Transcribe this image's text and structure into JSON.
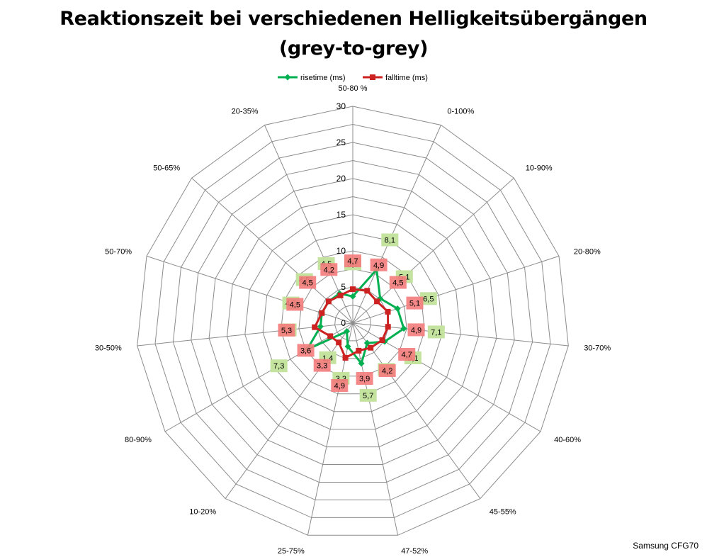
{
  "title": {
    "line1": "Reaktionszeit bei verschiedenen Helligkeitsübergängen",
    "line2": "(grey-to-grey)"
  },
  "footer": "Samsung CFG70",
  "chart_data": {
    "type": "radar",
    "categories": [
      "50-80 %",
      "0-100%",
      "10-90%",
      "20-80%",
      "30-70%",
      "40-60%",
      "45-55%",
      "47-52%",
      "25-75%",
      "10-20%",
      "80-90%",
      "30-50%",
      "50-70%",
      "50-65%",
      "20-35%"
    ],
    "radial_ticks": [
      "0",
      "5",
      "10",
      "15",
      "20",
      "25",
      "30"
    ],
    "rmax": 30,
    "grid_levels": 12,
    "grid": true,
    "legend_position": "top",
    "series": [
      {
        "name": "risetime (ms)",
        "color": "#00b050",
        "label_bg": "#c4e39f",
        "marker": "diamond",
        "values": [
          3.7,
          8.1,
          5.1,
          6.5,
          7.1,
          5.1,
          3.4,
          5.7,
          3.3,
          1.4,
          7.3,
          4.5,
          4.5,
          4.5,
          4.5
        ],
        "labels": [
          "3,7",
          "8,1",
          "5,1",
          "6,5",
          "7,1",
          "5,1",
          "3,4",
          "5,7",
          "3,3",
          "1,4",
          "7,3",
          "4,5",
          "4,5",
          "4,5",
          "4,5"
        ]
      },
      {
        "name": "falltime (ms)",
        "color": "#cc2222",
        "label_bg": "#f47c7c",
        "marker": "square",
        "values": [
          4.7,
          4.9,
          4.5,
          5.1,
          4.9,
          4.7,
          4.2,
          3.9,
          4.9,
          3.3,
          3.6,
          5.3,
          4.5,
          4.5,
          4.2
        ],
        "labels": [
          "4,7",
          "4,9",
          "4,5",
          "5,1",
          "4,9",
          "4,7",
          "4,2",
          "3,9",
          "4,9",
          "3,3",
          "3,6",
          "5,3",
          "4,5",
          "4,5",
          "4,2"
        ]
      }
    ]
  }
}
